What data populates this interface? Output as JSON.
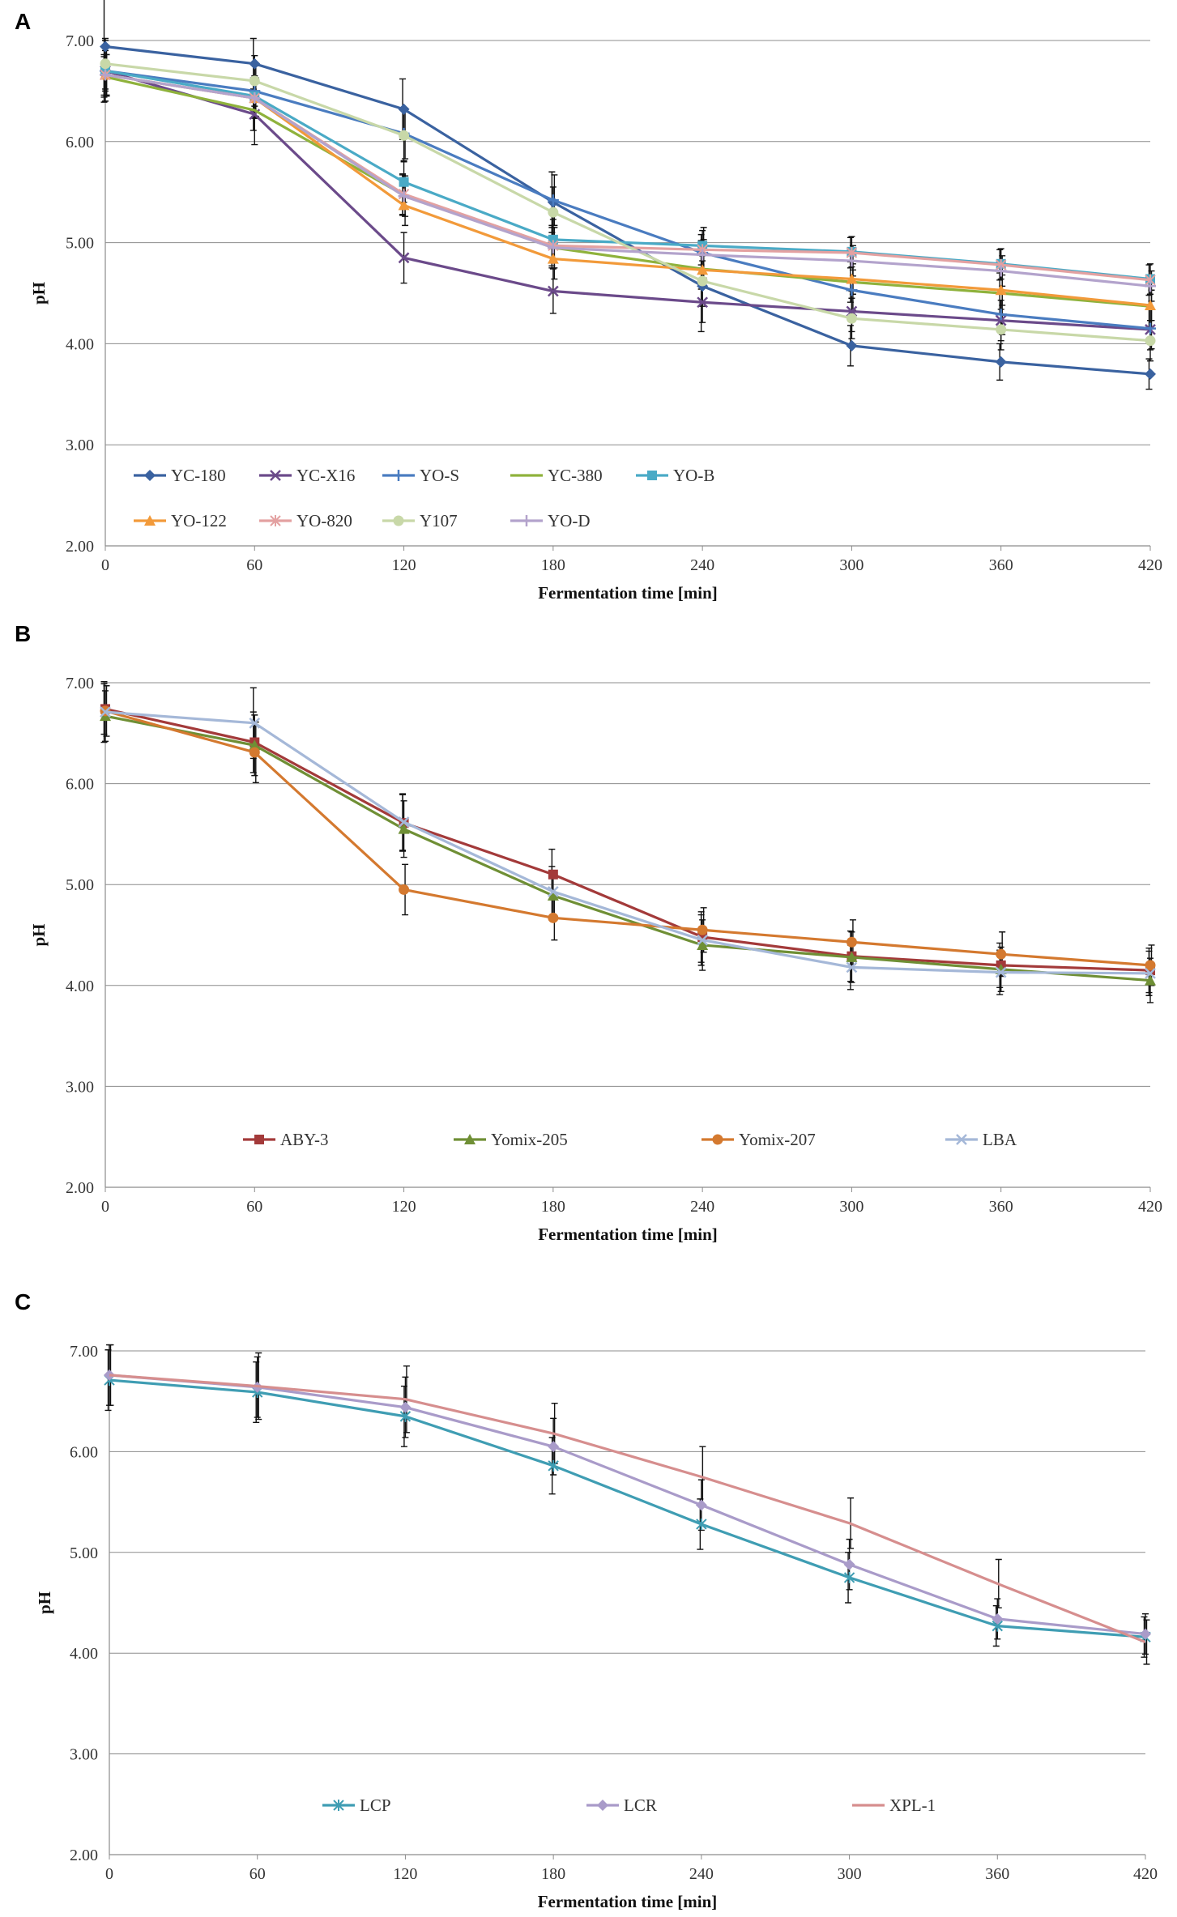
{
  "chart_data": [
    {
      "panel": "A",
      "type": "line",
      "xlabel": "Fermentation time [min]",
      "ylabel": "pH",
      "x": [
        0,
        60,
        120,
        180,
        240,
        300,
        360,
        420
      ],
      "ylim": [
        2.0,
        7.0
      ],
      "yticks": [
        "7.00",
        "6.00",
        "5.00",
        "4.00",
        "3.00",
        "2.00"
      ],
      "grid": true,
      "legend_position": "bottom-inside",
      "series": [
        {
          "name": "YC-180",
          "color": "#3a62a0",
          "marker": "diamond",
          "values": [
            6.94,
            6.77,
            6.32,
            5.4,
            4.57,
            3.98,
            3.82,
            3.7
          ],
          "err": [
            0.55,
            0.25,
            0.3,
            0.3,
            0.45,
            0.2,
            0.18,
            0.15
          ]
        },
        {
          "name": "YC-X16",
          "color": "#6b4a8a",
          "marker": "x",
          "values": [
            6.7,
            6.27,
            4.85,
            4.52,
            4.41,
            4.32,
            4.23,
            4.14
          ],
          "err": [
            0.3,
            0.3,
            0.25,
            0.22,
            0.2,
            0.2,
            0.2,
            0.2
          ]
        },
        {
          "name": "YO-S",
          "color": "#4a7cc0",
          "marker": "plus",
          "values": [
            6.7,
            6.5,
            6.08,
            5.42,
            4.9,
            4.53,
            4.29,
            4.15
          ],
          "err": [
            0.25,
            0.25,
            0.25,
            0.25,
            0.25,
            0.2,
            0.2,
            0.2
          ]
        },
        {
          "name": "YC-380",
          "color": "#8fb23c",
          "marker": "none",
          "values": [
            6.64,
            6.31,
            5.47,
            4.95,
            4.74,
            4.61,
            4.5,
            4.37
          ],
          "err": [
            0.2,
            0.2,
            0.2,
            0.2,
            0.2,
            0.2,
            0.2,
            0.2
          ]
        },
        {
          "name": "YO-B",
          "color": "#4aaac6",
          "marker": "square",
          "values": [
            6.7,
            6.45,
            5.6,
            5.03,
            4.97,
            4.91,
            4.79,
            4.64
          ],
          "err": [
            0.2,
            0.2,
            0.2,
            0.2,
            0.15,
            0.15,
            0.15,
            0.15
          ]
        },
        {
          "name": "YO-122",
          "color": "#f29a3a",
          "marker": "triangle",
          "values": [
            6.66,
            6.43,
            5.37,
            4.84,
            4.73,
            4.64,
            4.53,
            4.38
          ],
          "err": [
            0.2,
            0.2,
            0.2,
            0.2,
            0.15,
            0.15,
            0.15,
            0.15
          ]
        },
        {
          "name": "YO-820",
          "color": "#e3a1a1",
          "marker": "star",
          "values": [
            6.66,
            6.43,
            5.48,
            4.97,
            4.93,
            4.9,
            4.78,
            4.63
          ],
          "err": [
            0.2,
            0.2,
            0.2,
            0.2,
            0.15,
            0.15,
            0.15,
            0.15
          ]
        },
        {
          "name": "Y107",
          "color": "#c8d8a8",
          "marker": "circle",
          "values": [
            6.77,
            6.6,
            6.06,
            5.3,
            4.62,
            4.25,
            4.14,
            4.03
          ],
          "err": [
            0.25,
            0.25,
            0.25,
            0.25,
            0.25,
            0.2,
            0.2,
            0.2
          ]
        },
        {
          "name": "YO-D",
          "color": "#b3a3cc",
          "marker": "plus",
          "values": [
            6.66,
            6.43,
            5.46,
            4.95,
            4.88,
            4.82,
            4.72,
            4.57
          ],
          "err": [
            0.2,
            0.2,
            0.2,
            0.2,
            0.15,
            0.15,
            0.15,
            0.15
          ]
        }
      ]
    },
    {
      "panel": "B",
      "type": "line",
      "xlabel": "Fermentation time [min]",
      "ylabel": "pH",
      "x": [
        0,
        60,
        120,
        180,
        240,
        300,
        360,
        420
      ],
      "ylim": [
        2.0,
        7.0
      ],
      "yticks": [
        "7.00",
        "6.00",
        "5.00",
        "4.00",
        "3.00",
        "2.00"
      ],
      "grid": true,
      "legend_position": "bottom-inside",
      "series": [
        {
          "name": "ABY-3",
          "color": "#a33a3a",
          "marker": "square",
          "values": [
            6.74,
            6.41,
            5.61,
            5.1,
            4.48,
            4.29,
            4.2,
            4.15
          ],
          "err": [
            0.25,
            0.3,
            0.28,
            0.25,
            0.25,
            0.25,
            0.22,
            0.22
          ]
        },
        {
          "name": "Yomix-205",
          "color": "#6f8f35",
          "marker": "triangle",
          "values": [
            6.67,
            6.38,
            5.55,
            4.89,
            4.4,
            4.28,
            4.16,
            4.05
          ],
          "err": [
            0.25,
            0.3,
            0.28,
            0.25,
            0.25,
            0.25,
            0.22,
            0.22
          ]
        },
        {
          "name": "Yomix-207",
          "color": "#d4792f",
          "marker": "circle",
          "values": [
            6.72,
            6.31,
            4.95,
            4.67,
            4.55,
            4.43,
            4.31,
            4.2
          ],
          "err": [
            0.25,
            0.3,
            0.25,
            0.22,
            0.22,
            0.22,
            0.22,
            0.2
          ]
        },
        {
          "name": "LBA",
          "color": "#a5b8d8",
          "marker": "x",
          "values": [
            6.71,
            6.6,
            5.62,
            4.93,
            4.45,
            4.18,
            4.13,
            4.12
          ],
          "err": [
            0.3,
            0.35,
            0.28,
            0.25,
            0.25,
            0.22,
            0.22,
            0.22
          ]
        }
      ]
    },
    {
      "panel": "C",
      "type": "line",
      "xlabel": "Fermentation time [min]",
      "ylabel": "pH",
      "x": [
        0,
        60,
        120,
        180,
        240,
        300,
        360,
        420
      ],
      "ylim": [
        2.0,
        7.0
      ],
      "yticks": [
        "7.00",
        "6.00",
        "5.00",
        "4.00",
        "3.00",
        "2.00"
      ],
      "grid": true,
      "legend_position": "bottom-inside",
      "series": [
        {
          "name": "LCP",
          "color": "#3f9db3",
          "marker": "star",
          "values": [
            6.71,
            6.59,
            6.35,
            5.86,
            5.28,
            4.75,
            4.27,
            4.16
          ],
          "err": [
            0.3,
            0.3,
            0.3,
            0.28,
            0.25,
            0.25,
            0.2,
            0.2
          ]
        },
        {
          "name": "LCR",
          "color": "#a99bc9",
          "marker": "diamond",
          "values": [
            6.76,
            6.64,
            6.44,
            6.05,
            5.47,
            4.88,
            4.34,
            4.19
          ],
          "err": [
            0.3,
            0.3,
            0.3,
            0.28,
            0.25,
            0.25,
            0.2,
            0.2
          ]
        },
        {
          "name": "XPL-1",
          "color": "#d68e8e",
          "marker": "none",
          "values": [
            6.76,
            6.65,
            6.52,
            6.18,
            5.75,
            5.29,
            4.69,
            4.11
          ],
          "err": [
            0.3,
            0.33,
            0.33,
            0.3,
            0.3,
            0.25,
            0.24,
            0.22
          ]
        }
      ]
    }
  ]
}
